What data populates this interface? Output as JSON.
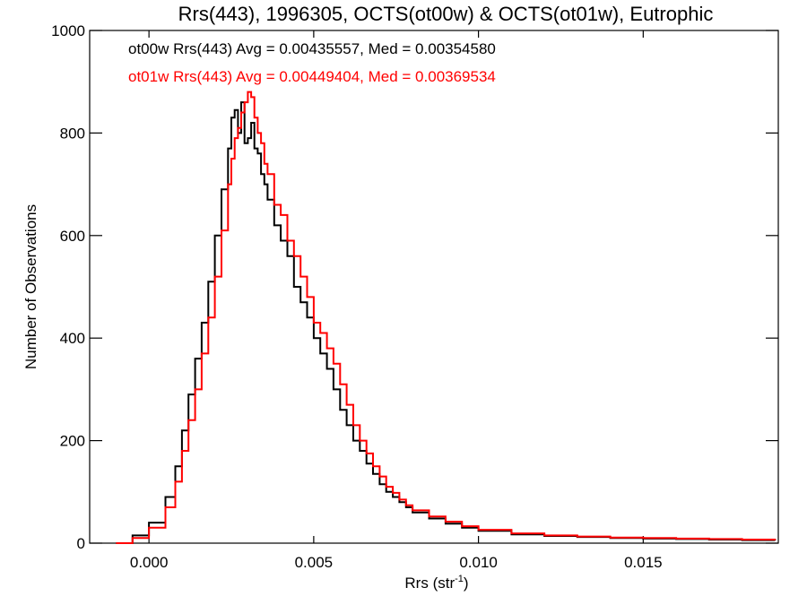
{
  "chart_data": {
    "type": "line",
    "subtype": "step-histogram",
    "title": "Rrs(443), 1996305, OCTS(ot00w) & OCTS(ot01w), Eutrophic",
    "xlabel_base": "Rrs (str",
    "xlabel_sup": "-1",
    "xlabel_end": ")",
    "ylabel": "Number of Observations",
    "xlim": [
      -0.0018,
      0.0191
    ],
    "ylim": [
      0,
      1000
    ],
    "xticks": [
      0.0,
      0.005,
      0.01,
      0.015
    ],
    "xtick_labels": [
      "0.000",
      "0.005",
      "0.010",
      "0.015"
    ],
    "yticks": [
      0,
      200,
      400,
      600,
      800,
      1000
    ],
    "ytick_labels": [
      "0",
      "200",
      "400",
      "600",
      "800",
      "1000"
    ],
    "grid": false,
    "legend": [
      {
        "text": "ot00w Rrs(443) Avg = 0.00435557, Med = 0.00354580",
        "color": "#000000"
      },
      {
        "text": "ot01w Rrs(443) Avg = 0.00449404, Med = 0.00369534",
        "color": "#ff0000"
      }
    ],
    "legend_position": "top-left",
    "series": [
      {
        "name": "ot00w",
        "color": "#000000",
        "x": [
          -0.001,
          -0.0005,
          0.0,
          0.0005,
          0.0008,
          0.001,
          0.0012,
          0.0014,
          0.0016,
          0.0018,
          0.002,
          0.0022,
          0.0024,
          0.0025,
          0.0026,
          0.0027,
          0.0028,
          0.0029,
          0.003,
          0.0031,
          0.0032,
          0.0033,
          0.0034,
          0.0035,
          0.0036,
          0.0038,
          0.004,
          0.0042,
          0.0044,
          0.0046,
          0.0048,
          0.005,
          0.0052,
          0.0054,
          0.0056,
          0.0058,
          0.006,
          0.0062,
          0.0064,
          0.0066,
          0.0068,
          0.007,
          0.0072,
          0.0074,
          0.0076,
          0.0078,
          0.008,
          0.0085,
          0.009,
          0.0095,
          0.01,
          0.011,
          0.012,
          0.013,
          0.014,
          0.015,
          0.016,
          0.017,
          0.018,
          0.019
        ],
        "y": [
          0,
          15,
          40,
          90,
          150,
          220,
          290,
          360,
          430,
          510,
          600,
          690,
          770,
          830,
          845,
          800,
          860,
          780,
          790,
          820,
          770,
          760,
          720,
          700,
          670,
          620,
          590,
          560,
          500,
          470,
          440,
          400,
          370,
          340,
          300,
          260,
          230,
          200,
          180,
          155,
          135,
          115,
          100,
          90,
          80,
          70,
          60,
          48,
          38,
          30,
          24,
          17,
          14,
          12,
          10,
          9,
          8,
          7,
          6,
          5
        ]
      },
      {
        "name": "ot01w",
        "color": "#ff0000",
        "x": [
          -0.001,
          -0.0005,
          0.0,
          0.0005,
          0.0008,
          0.001,
          0.0012,
          0.0014,
          0.0016,
          0.0018,
          0.002,
          0.0022,
          0.0024,
          0.0025,
          0.0026,
          0.0027,
          0.0028,
          0.0029,
          0.003,
          0.0031,
          0.0032,
          0.0033,
          0.0034,
          0.0035,
          0.0036,
          0.0038,
          0.004,
          0.0042,
          0.0044,
          0.0046,
          0.0048,
          0.005,
          0.0052,
          0.0054,
          0.0056,
          0.0058,
          0.006,
          0.0062,
          0.0064,
          0.0066,
          0.0068,
          0.007,
          0.0072,
          0.0074,
          0.0076,
          0.0078,
          0.008,
          0.0085,
          0.009,
          0.0095,
          0.01,
          0.011,
          0.012,
          0.013,
          0.014,
          0.015,
          0.016,
          0.017,
          0.018,
          0.019
        ],
        "y": [
          0,
          10,
          30,
          70,
          120,
          180,
          240,
          300,
          370,
          440,
          520,
          610,
          700,
          750,
          790,
          810,
          840,
          860,
          880,
          870,
          830,
          800,
          780,
          740,
          720,
          660,
          640,
          590,
          560,
          520,
          480,
          430,
          410,
          380,
          350,
          310,
          270,
          230,
          200,
          175,
          150,
          130,
          110,
          98,
          85,
          74,
          64,
          52,
          42,
          33,
          26,
          19,
          15,
          13,
          11,
          10,
          9,
          8,
          7,
          6
        ]
      }
    ]
  }
}
